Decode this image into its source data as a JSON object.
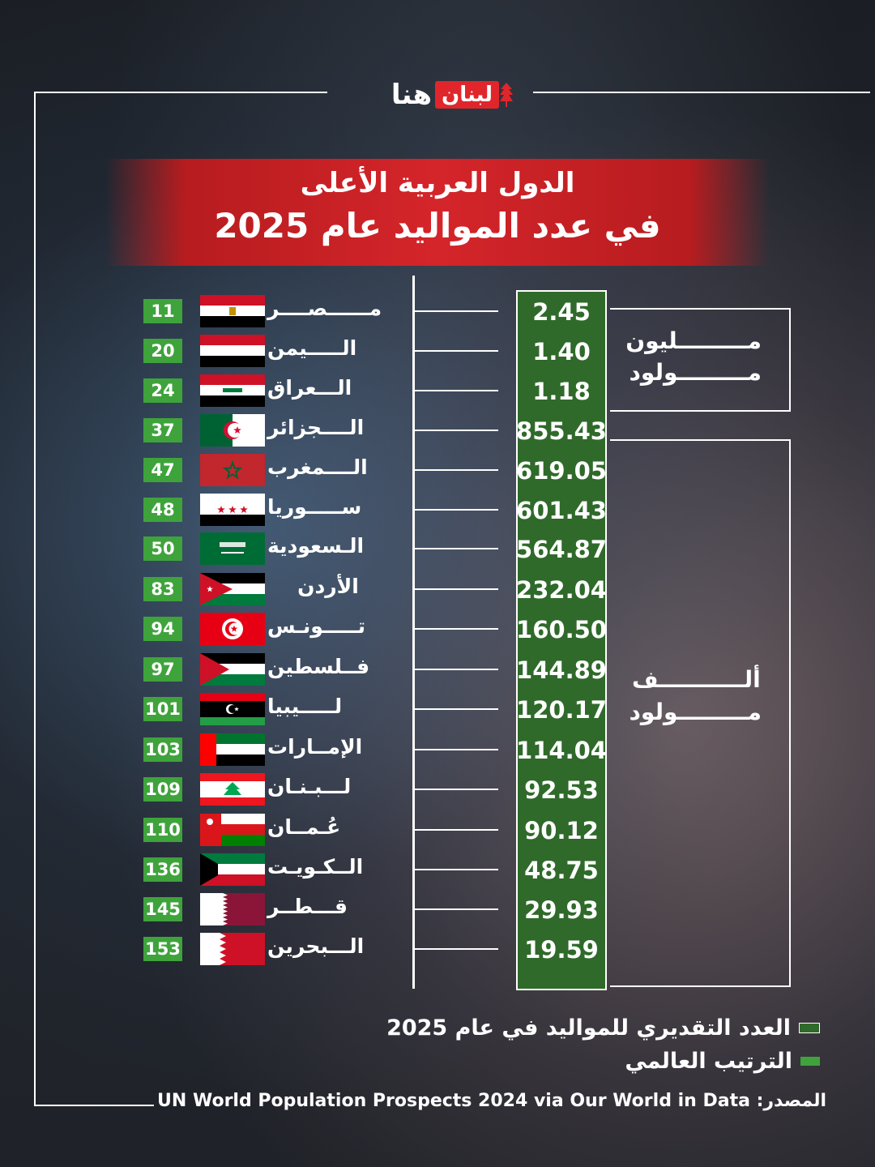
{
  "logo": {
    "text_red": "لبنان",
    "text_white": "هنا"
  },
  "title": {
    "line1": "الدول العربية الأعلى",
    "line2": "في عدد المواليد عام 2025"
  },
  "unit_million": {
    "line1": "مـــــــــليون",
    "line2": "مـــــــــولود"
  },
  "unit_thousand": {
    "line1": "ألـــــــــــف",
    "line2": "مـــــــــولود"
  },
  "legend": {
    "births_label": "العدد التقديري للمواليد في عام 2025",
    "rank_label": "الترتيب العالمي"
  },
  "source": "المصدر: UN World Population Prospects 2024 via Our World in Data",
  "colors": {
    "banner_red": "#d4252a",
    "panel_green": "#2f6a2a",
    "rank_green": "#3fa33c"
  },
  "chart_data": {
    "type": "table",
    "title": "الدول العربية الأعلى في عدد المواليد عام 2025",
    "columns": [
      "rank",
      "country",
      "births"
    ],
    "rows": [
      {
        "rank": "11",
        "country": "مــــــصــــر",
        "births": "2.45",
        "unit": "مليون",
        "flag": "egypt"
      },
      {
        "rank": "20",
        "country": "الـــــيمن",
        "births": "1.40",
        "unit": "مليون",
        "flag": "yemen"
      },
      {
        "rank": "24",
        "country": "الـــعراق",
        "births": "1.18",
        "unit": "مليون",
        "flag": "iraq"
      },
      {
        "rank": "37",
        "country": "الــــجزائر",
        "births": "855.43",
        "unit": "ألف",
        "flag": "algeria"
      },
      {
        "rank": "47",
        "country": "الــــمغرب",
        "births": "619.05",
        "unit": "ألف",
        "flag": "morocco"
      },
      {
        "rank": "48",
        "country": "ســـــوريا",
        "births": "601.43",
        "unit": "ألف",
        "flag": "syria"
      },
      {
        "rank": "50",
        "country": "الـسعودية",
        "births": "564.87",
        "unit": "ألف",
        "flag": "saudi"
      },
      {
        "rank": "83",
        "country": "الأردن",
        "births": "232.04",
        "unit": "ألف",
        "flag": "jordan"
      },
      {
        "rank": "94",
        "country": "تـــــونـس",
        "births": "160.50",
        "unit": "ألف",
        "flag": "tunisia"
      },
      {
        "rank": "97",
        "country": "فــلسطين",
        "births": "144.89",
        "unit": "ألف",
        "flag": "palestine"
      },
      {
        "rank": "101",
        "country": "لـــــيبيا",
        "births": "120.17",
        "unit": "ألف",
        "flag": "libya"
      },
      {
        "rank": "103",
        "country": "الإمــارات",
        "births": "114.04",
        "unit": "ألف",
        "flag": "uae"
      },
      {
        "rank": "109",
        "country": "لـــبـنـان",
        "births": "92.53",
        "unit": "ألف",
        "flag": "lebanon"
      },
      {
        "rank": "110",
        "country": "عُـمــان",
        "births": "90.12",
        "unit": "ألف",
        "flag": "oman"
      },
      {
        "rank": "136",
        "country": "الــكـويـت",
        "births": "48.75",
        "unit": "ألف",
        "flag": "kuwait"
      },
      {
        "rank": "145",
        "country": "قـــطــر",
        "births": "29.93",
        "unit": "ألف",
        "flag": "qatar"
      },
      {
        "rank": "153",
        "country": "الـــبحرين",
        "births": "19.59",
        "unit": "ألف",
        "flag": "bahrain"
      }
    ]
  }
}
